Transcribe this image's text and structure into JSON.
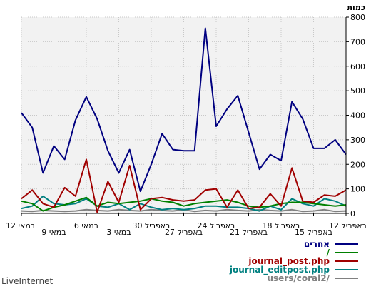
{
  "chart_data": {
    "type": "line",
    "title": "",
    "ylabel": "כמות",
    "xlabel": "",
    "ylim": [
      0,
      800
    ],
    "yticks": [
      0,
      100,
      200,
      300,
      400,
      500,
      600,
      700,
      800
    ],
    "grid": true,
    "legend_position": "bottom-right",
    "x_tick_labels": [
      "12 באפריל",
      "15 באפריל",
      "18 באפריל",
      "21 באפריל",
      "24 באפריל",
      "27 באפריל",
      "30 באפריל",
      "3 במאי",
      "6 במאי",
      "9 במאי",
      "12 במאי"
    ],
    "series": [
      {
        "name": "אחרים",
        "color": "#000080",
        "values": [
          240,
          300,
          265,
          265,
          385,
          455,
          215,
          240,
          180,
          330,
          480,
          425,
          355,
          755,
          255,
          255,
          260,
          325,
          200,
          90,
          260,
          165,
          255,
          385,
          475,
          380,
          220,
          275,
          165,
          350,
          410
        ]
      },
      {
        "name": "/",
        "color": "#008000",
        "values": [
          35,
          30,
          35,
          40,
          45,
          45,
          40,
          30,
          25,
          30,
          45,
          55,
          50,
          45,
          40,
          30,
          45,
          50,
          60,
          50,
          45,
          40,
          45,
          30,
          65,
          50,
          35,
          25,
          10,
          40,
          50
        ]
      },
      {
        "name": "journal_post.php",
        "color": "#a00000",
        "values": [
          95,
          70,
          75,
          45,
          50,
          185,
          30,
          80,
          25,
          20,
          95,
          25,
          100,
          95,
          55,
          50,
          55,
          65,
          60,
          15,
          195,
          45,
          130,
          5,
          220,
          70,
          105,
          25,
          40,
          95,
          60
        ]
      },
      {
        "name": "journal_editpost.php",
        "color": "#008080",
        "values": [
          30,
          50,
          60,
          30,
          40,
          60,
          15,
          30,
          10,
          20,
          25,
          25,
          30,
          30,
          20,
          15,
          20,
          15,
          25,
          40,
          15,
          40,
          25,
          30,
          60,
          40,
          35,
          40,
          70,
          30,
          20
        ]
      },
      {
        "name": "users/coral2/",
        "color": "#808080",
        "values": [
          10,
          8,
          15,
          10,
          8,
          15,
          10,
          12,
          15,
          10,
          12,
          15,
          10,
          12,
          8,
          15,
          10,
          12,
          15,
          10,
          12,
          15,
          10,
          12,
          15,
          10,
          8,
          10,
          12,
          8,
          10
        ]
      }
    ]
  },
  "footer": {
    "brand": "LiveInternet"
  }
}
